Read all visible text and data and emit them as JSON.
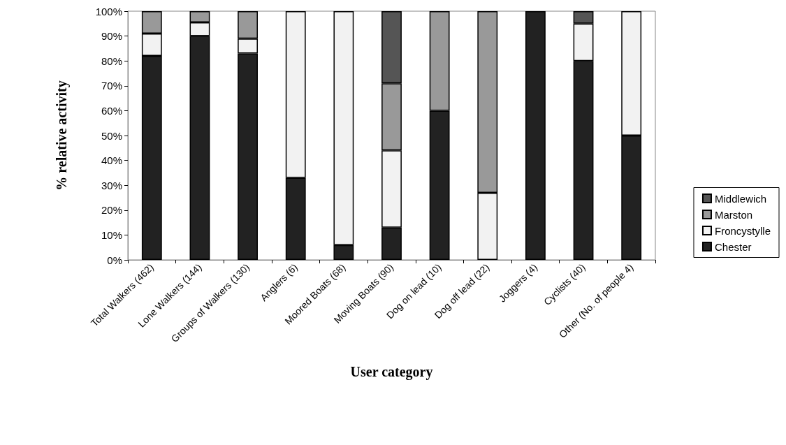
{
  "chart_data": {
    "type": "bar",
    "stacked": true,
    "xlabel": "User category",
    "ylabel": "% relative activity",
    "categories": [
      "Total Walkers (462)",
      "Lone Walkers (144)",
      "Groups of Walkers (130)",
      "Anglers (6)",
      "Moored Boats (68)",
      "Moving Boats (90)",
      "Dog on lead (10)",
      "Dog off lead (22)",
      "Joggers (4)",
      "Cyclists (40)",
      "Other (No. of people 4)"
    ],
    "series": [
      {
        "name": "Chester",
        "color": "#222222",
        "values": [
          82,
          90,
          83,
          33,
          6,
          13,
          60,
          0,
          100,
          80,
          50
        ]
      },
      {
        "name": "Froncystylle",
        "color": "#f2f2f2",
        "values": [
          9,
          5.5,
          6,
          67,
          94,
          31,
          0,
          27,
          0,
          15,
          50
        ]
      },
      {
        "name": "Marston",
        "color": "#999999",
        "values": [
          9,
          4.5,
          11,
          0,
          0,
          27,
          40,
          73,
          0,
          0,
          0
        ]
      },
      {
        "name": "Middlewich",
        "color": "#555555",
        "values": [
          0,
          0,
          0,
          0,
          0,
          29,
          0,
          0,
          0,
          5,
          0
        ]
      }
    ],
    "ylim": [
      0,
      100
    ],
    "yticks": [
      {
        "value": 0,
        "label": "0%"
      },
      {
        "value": 10,
        "label": "10%"
      },
      {
        "value": 20,
        "label": "20%"
      },
      {
        "value": 30,
        "label": "30%"
      },
      {
        "value": 40,
        "label": "40%"
      },
      {
        "value": 50,
        "label": "50%"
      },
      {
        "value": 60,
        "label": "60%"
      },
      {
        "value": 70,
        "label": "70%"
      },
      {
        "value": 80,
        "label": "80%"
      },
      {
        "value": 90,
        "label": "90%"
      },
      {
        "value": 100,
        "label": "100%"
      }
    ],
    "grid": false,
    "legend": "right"
  }
}
